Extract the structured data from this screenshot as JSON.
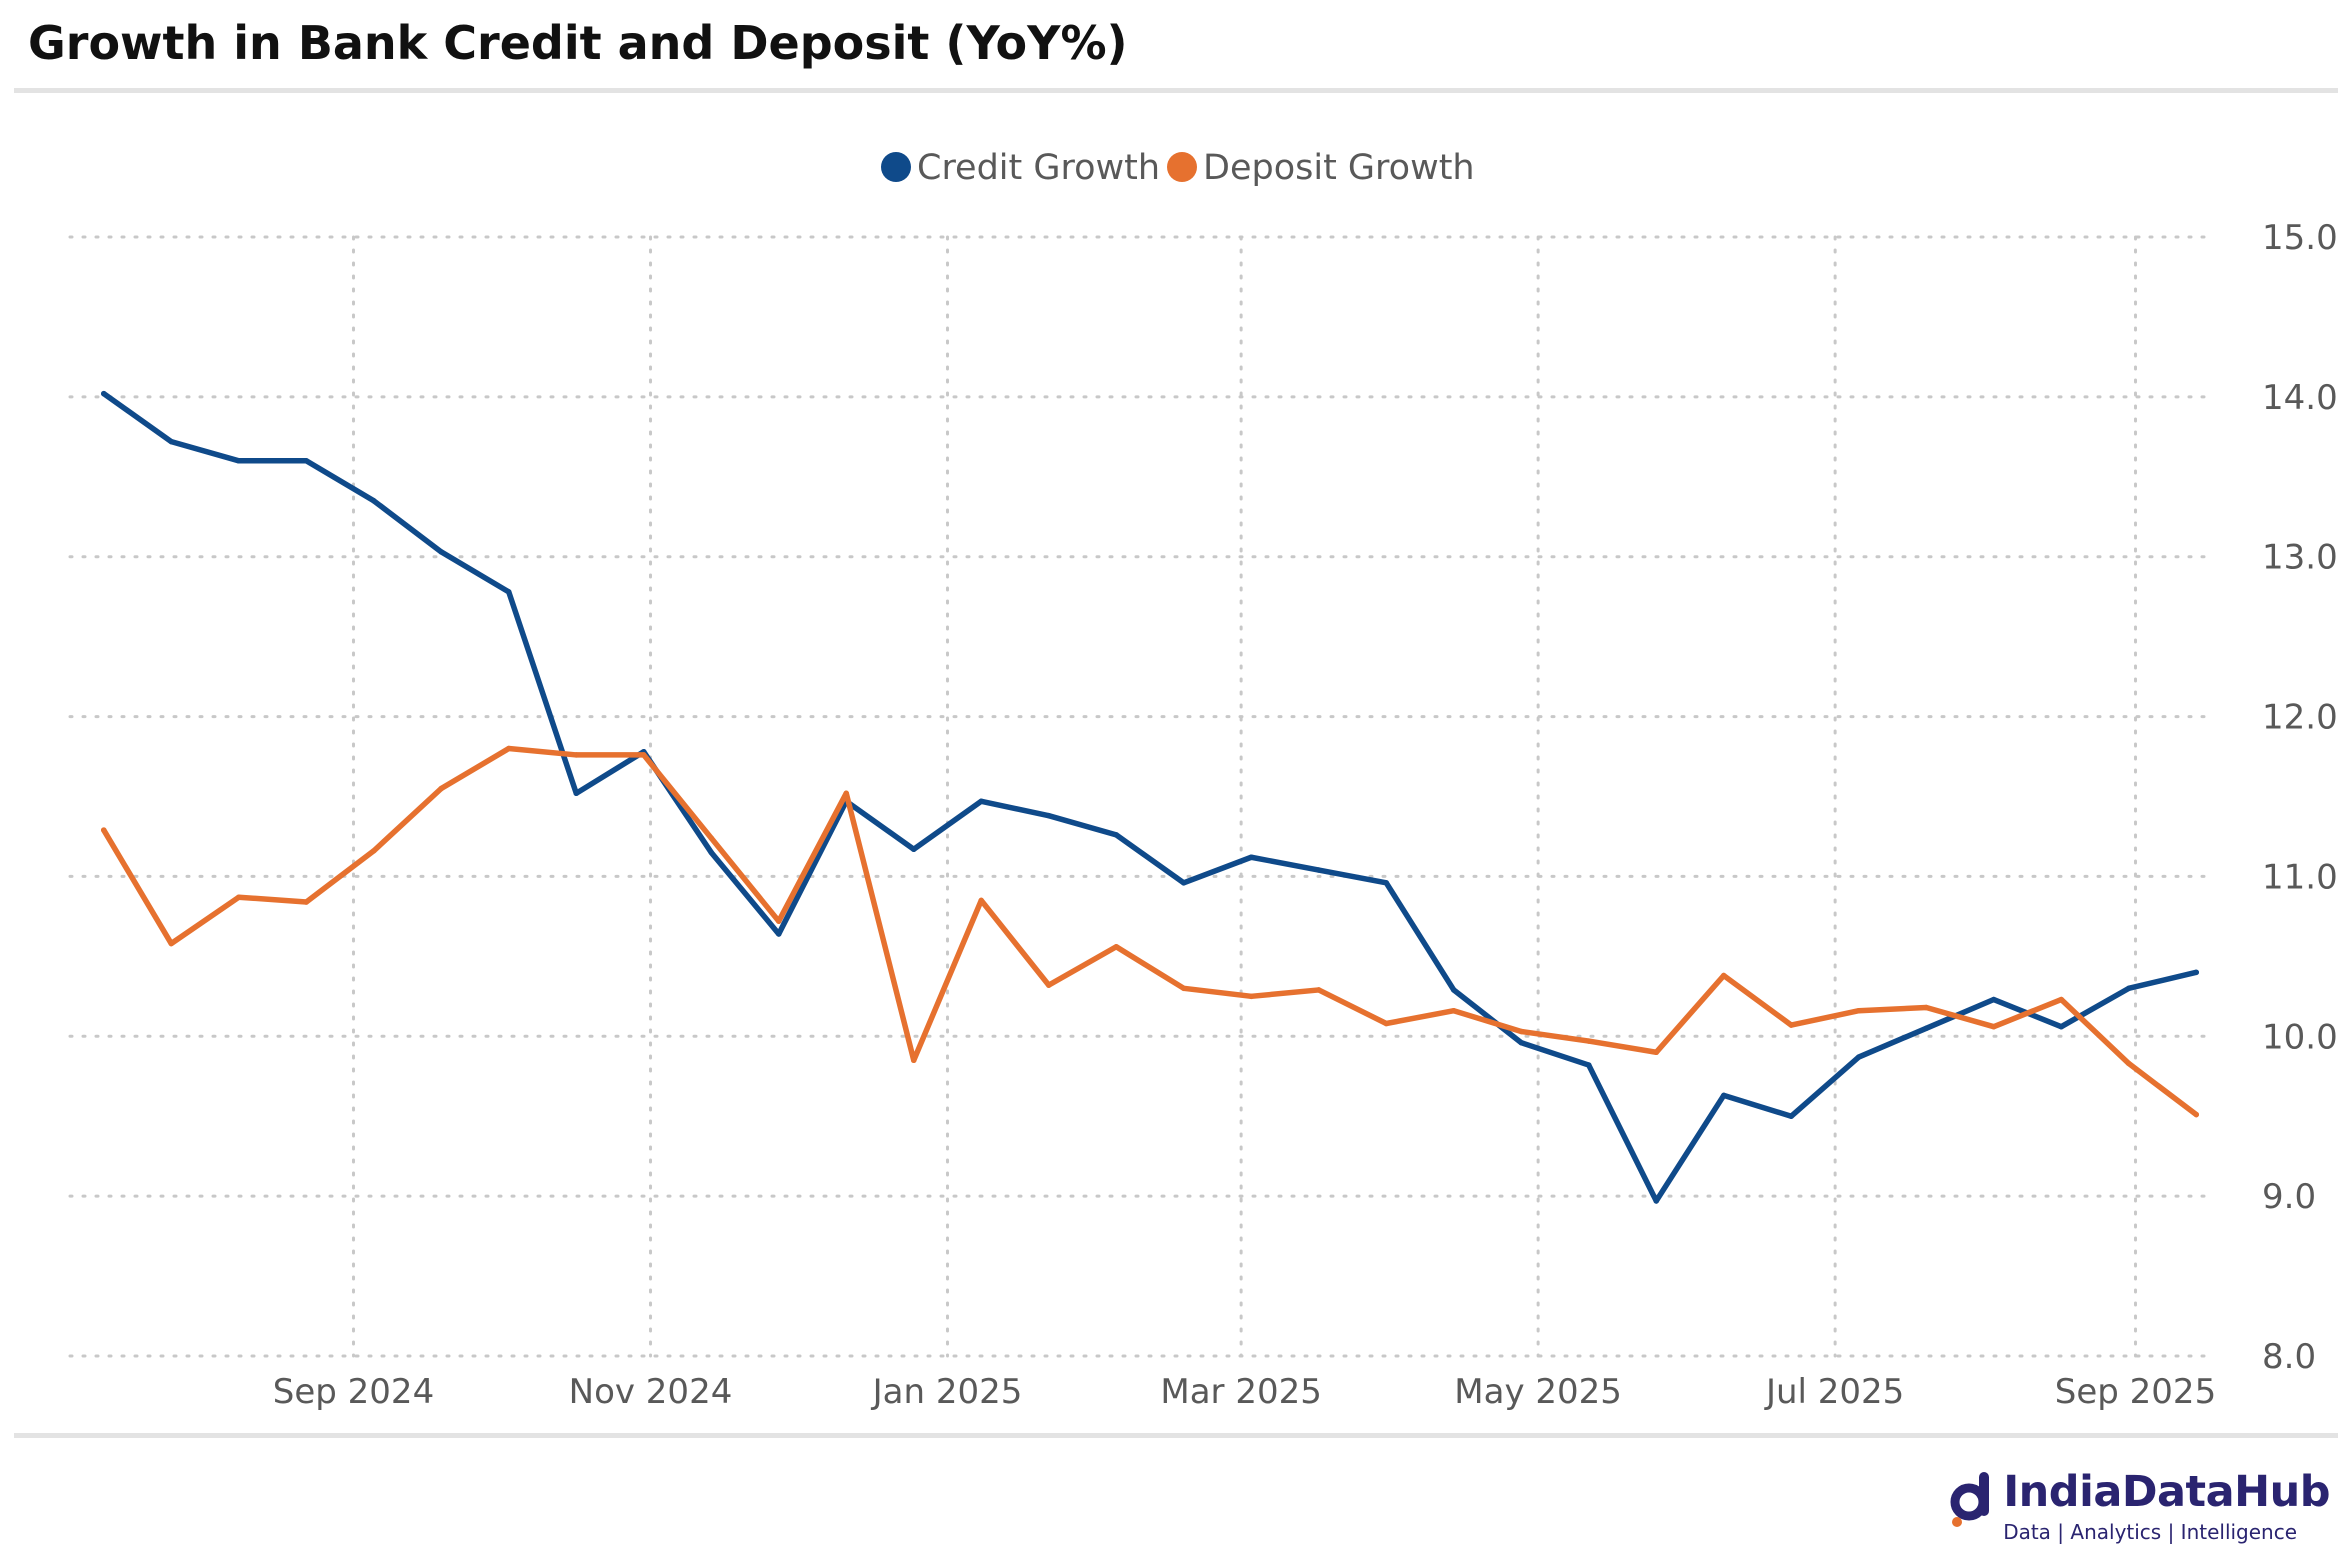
{
  "title": "Growth in Bank Credit and Deposit (YoY%)",
  "brand": {
    "name": "IndiaDataHub",
    "tagline": "Data | Analytics | Intelligence"
  },
  "colors": {
    "credit": "#0f4a8a",
    "deposit": "#e6712f",
    "grid": "#c8c8c8"
  },
  "chart_data": {
    "type": "line",
    "title": "Growth in Bank Credit and Deposit (YoY%)",
    "xlabel": "",
    "ylabel": "",
    "ylim": [
      8.0,
      15.0
    ],
    "y_ticks": [
      "8.0",
      "9.0",
      "10.0",
      "11.0",
      "12.0",
      "13.0",
      "14.0",
      "15.0"
    ],
    "x_ticks": [
      {
        "label": "Sep 2024",
        "x": 3.7
      },
      {
        "label": "Nov 2024",
        "x": 8.1
      },
      {
        "label": "Jan 2025",
        "x": 12.5
      },
      {
        "label": "Mar 2025",
        "x": 16.85
      },
      {
        "label": "May 2025",
        "x": 21.25
      },
      {
        "label": "Jul 2025",
        "x": 25.65
      },
      {
        "label": "Sep 2025",
        "x": 30.1
      }
    ],
    "xlim": [
      -0.5,
      31.5
    ],
    "legend": "top-center",
    "grid": true,
    "series": [
      {
        "name": "Credit Growth",
        "color": "#0f4a8a",
        "values": [
          14.02,
          13.72,
          13.6,
          13.6,
          13.35,
          13.03,
          12.78,
          11.52,
          11.78,
          11.15,
          10.64,
          11.47,
          11.17,
          11.47,
          11.38,
          11.26,
          10.96,
          11.12,
          11.04,
          10.96,
          10.29,
          9.96,
          9.82,
          8.97,
          9.63,
          9.5,
          9.87,
          10.05,
          10.23,
          10.06,
          10.3,
          10.4
        ]
      },
      {
        "name": "Deposit Growth",
        "color": "#e6712f",
        "values": [
          11.29,
          10.58,
          10.87,
          10.84,
          11.16,
          11.55,
          11.8,
          11.76,
          11.76,
          11.24,
          10.72,
          11.52,
          9.85,
          10.85,
          10.32,
          10.56,
          10.3,
          10.25,
          10.29,
          10.08,
          10.16,
          10.03,
          9.97,
          9.9,
          10.38,
          10.07,
          10.16,
          10.18,
          10.06,
          10.23,
          9.83,
          9.51
        ]
      }
    ]
  }
}
